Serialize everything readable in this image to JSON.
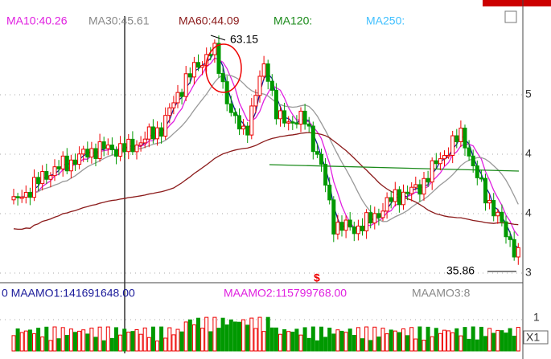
{
  "header": {
    "ma_labels": [
      "MA10:40.26",
      "MA30:45.61",
      "MA60:44.09",
      "MA120:",
      "MA250:"
    ]
  },
  "main_panel": {
    "high_label": "63.15",
    "low_label": "35.86",
    "marker": "$",
    "axis_labels": [
      "5",
      "4",
      "4",
      "3"
    ]
  },
  "volume_panel": {
    "labels": [
      "0 MAAMO1:141691648.00",
      "MAAMO2:115799768.00",
      "MAAMO3:8"
    ],
    "axis_labels": [
      "1",
      "X1"
    ]
  }
}
